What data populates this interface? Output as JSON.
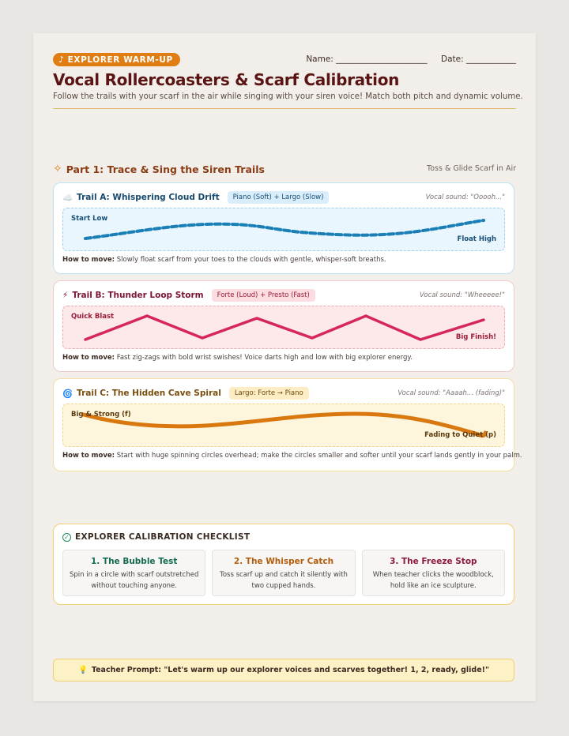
{
  "header": {
    "badge": "EXPLORER WARM-UP",
    "badge_icon": "music-note-icon",
    "name_label": "Name: ______________________",
    "date_label": "Date: ____________",
    "title": "Vocal Rollercoasters & Scarf Calibration",
    "subtitle": "Follow the trails with your scarf in the air while singing with your siren voice! Match both pitch and dynamic volume."
  },
  "part1": {
    "title": "Part 1: Trace & Sing the Siren Trails",
    "note": "Toss & Glide Scarf in Air",
    "trails": [
      {
        "icon": "☁️",
        "title": "Trail A: Whispering Cloud Drift",
        "tag": "Piano (Soft) + Largo (Slow)",
        "vocal": "Vocal sound: \"Ooooh...\"",
        "start": "Start Low",
        "end": "Float High",
        "how_label": "How to move:",
        "how_text": "Slowly float scarf from your toes to the clouds with gentle, whisper-soft breaths.",
        "color": "#1a7fb5"
      },
      {
        "icon": "⚡",
        "title": "Trail B: Thunder Loop Storm",
        "tag": "Forte (Loud) + Presto (Fast)",
        "vocal": "Vocal sound: \"Wheeeee!\"",
        "start": "Quick Blast",
        "end": "Big Finish!",
        "how_label": "How to move:",
        "how_text": "Fast zig-zags with bold wrist swishes! Voice darts high and low with big explorer energy.",
        "color": "#d6265a"
      },
      {
        "icon": "🌀",
        "title": "Trail C: The Hidden Cave Spiral",
        "tag": "Largo: Forte → Piano",
        "vocal": "Vocal sound: \"Aaaah... (fading)\"",
        "start": "Big & Strong (f)",
        "end": "Fading to Quiet (p)",
        "how_label": "How to move:",
        "how_text": "Start with huge spinning circles overhead; make the circles smaller and softer until your scarf lands gently in your palm.",
        "color": "#d9780e"
      }
    ]
  },
  "checklist": {
    "title": "EXPLORER CALIBRATION CHECKLIST",
    "items": [
      {
        "title": "1. The Bubble Test",
        "text": "Spin in a circle with scarf outstretched without touching anyone."
      },
      {
        "title": "2. The Whisper Catch",
        "text": "Toss scarf up and catch it silently with two cupped hands."
      },
      {
        "title": "3. The Freeze Stop",
        "text": "When teacher clicks the woodblock, hold like an ice sculpture."
      }
    ]
  },
  "prompt": {
    "icon": "💡",
    "text": "Teacher Prompt: \"Let's warm up our explorer voices and scarves together! 1, 2, ready, glide!\""
  }
}
